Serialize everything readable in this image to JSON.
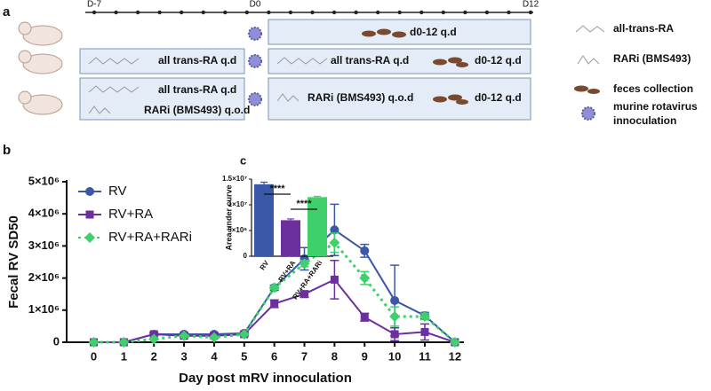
{
  "schematic": {
    "label": "a",
    "timeline": [
      "D-7",
      "D0",
      "D12"
    ],
    "rows": [
      {
        "post": [
          "d0-12 q.d"
        ]
      },
      {
        "pre": [
          "all trans-RA q.d"
        ],
        "post": [
          "all trans-RA q.d",
          "d0-12 q.d"
        ]
      },
      {
        "pre": [
          "all trans-RA q.d",
          "RARi (BMS493) q.o.d"
        ],
        "post": [
          "RARi (BMS493) q.o.d",
          "d0-12 q.d"
        ]
      }
    ],
    "legend": [
      "all-trans-RA",
      "RARi (BMS493)",
      "feces collection",
      [
        "murine rotavirus",
        "innoculation"
      ]
    ]
  },
  "chart_data": [
    {
      "type": "line",
      "panel": "b",
      "xlabel": "Day post mRV innoculation",
      "ylabel": "Fecal  RV SD50",
      "x": [
        0,
        1,
        2,
        3,
        4,
        5,
        6,
        7,
        8,
        9,
        10,
        11,
        12
      ],
      "xlim": [
        -0.9,
        12.3
      ],
      "xticks": [
        0,
        1,
        2,
        3,
        4,
        5,
        6,
        7,
        8,
        9,
        10,
        11,
        12
      ],
      "ylim": [
        0,
        5000000
      ],
      "yticks": [
        0,
        {
          "value": 1000000,
          "label": "1×10⁶"
        },
        {
          "value": 2000000,
          "label": "2×10⁶"
        },
        {
          "value": 3000000,
          "label": "3×10⁶"
        },
        {
          "value": 4000000,
          "label": "4×10⁶"
        },
        {
          "value": 5000000,
          "label": "5×10⁶"
        }
      ],
      "series": [
        {
          "name": "RV",
          "color": "#3b57a7",
          "marker": "circle",
          "dashed": false,
          "values": [
            0,
            0,
            250000,
            250000,
            250000,
            280000,
            1700000,
            2600000,
            3500000,
            2850000,
            1300000,
            830000,
            0
          ],
          "errors": [
            0,
            0,
            50000,
            50000,
            50000,
            50000,
            80000,
            350000,
            800000,
            200000,
            1100000,
            100000,
            0
          ]
        },
        {
          "name": "RV+RA",
          "color": "#6b2f9e",
          "marker": "square",
          "dashed": false,
          "values": [
            0,
            0,
            250000,
            200000,
            200000,
            250000,
            1200000,
            1500000,
            1950000,
            780000,
            250000,
            320000,
            0
          ],
          "errors": [
            0,
            0,
            50000,
            50000,
            50000,
            50000,
            120000,
            100000,
            600000,
            120000,
            200000,
            250000,
            0
          ]
        },
        {
          "name": "RV+RA+RARi",
          "color": "#3fcf6b",
          "marker": "diamond",
          "dashed": true,
          "values": [
            0,
            0,
            100000,
            200000,
            150000,
            250000,
            1700000,
            2450000,
            3100000,
            2000000,
            800000,
            800000,
            0
          ],
          "errors": [
            0,
            0,
            20000,
            20000,
            20000,
            20000,
            50000,
            100000,
            300000,
            200000,
            300000,
            100000,
            0
          ]
        }
      ]
    },
    {
      "type": "bar",
      "panel": "c",
      "ylabel": "Area under curve",
      "categories": [
        "RV",
        "RV+RA",
        "RV+RA+RARi"
      ],
      "values": [
        14000000,
        7000000,
        11500000
      ],
      "errors": [
        400000,
        250000,
        150000
      ],
      "colors": [
        "#3b57a7",
        "#6b2f9e",
        "#3fcf6b"
      ],
      "ylim": [
        0,
        15000000
      ],
      "yticks": [
        0,
        {
          "value": 5000000,
          "label": "5×10⁶"
        },
        {
          "value": 10000000,
          "label": "1×10⁷"
        },
        {
          "value": 15000000,
          "label": "1.5×10⁷"
        }
      ],
      "significance": [
        "****",
        "****"
      ]
    }
  ]
}
